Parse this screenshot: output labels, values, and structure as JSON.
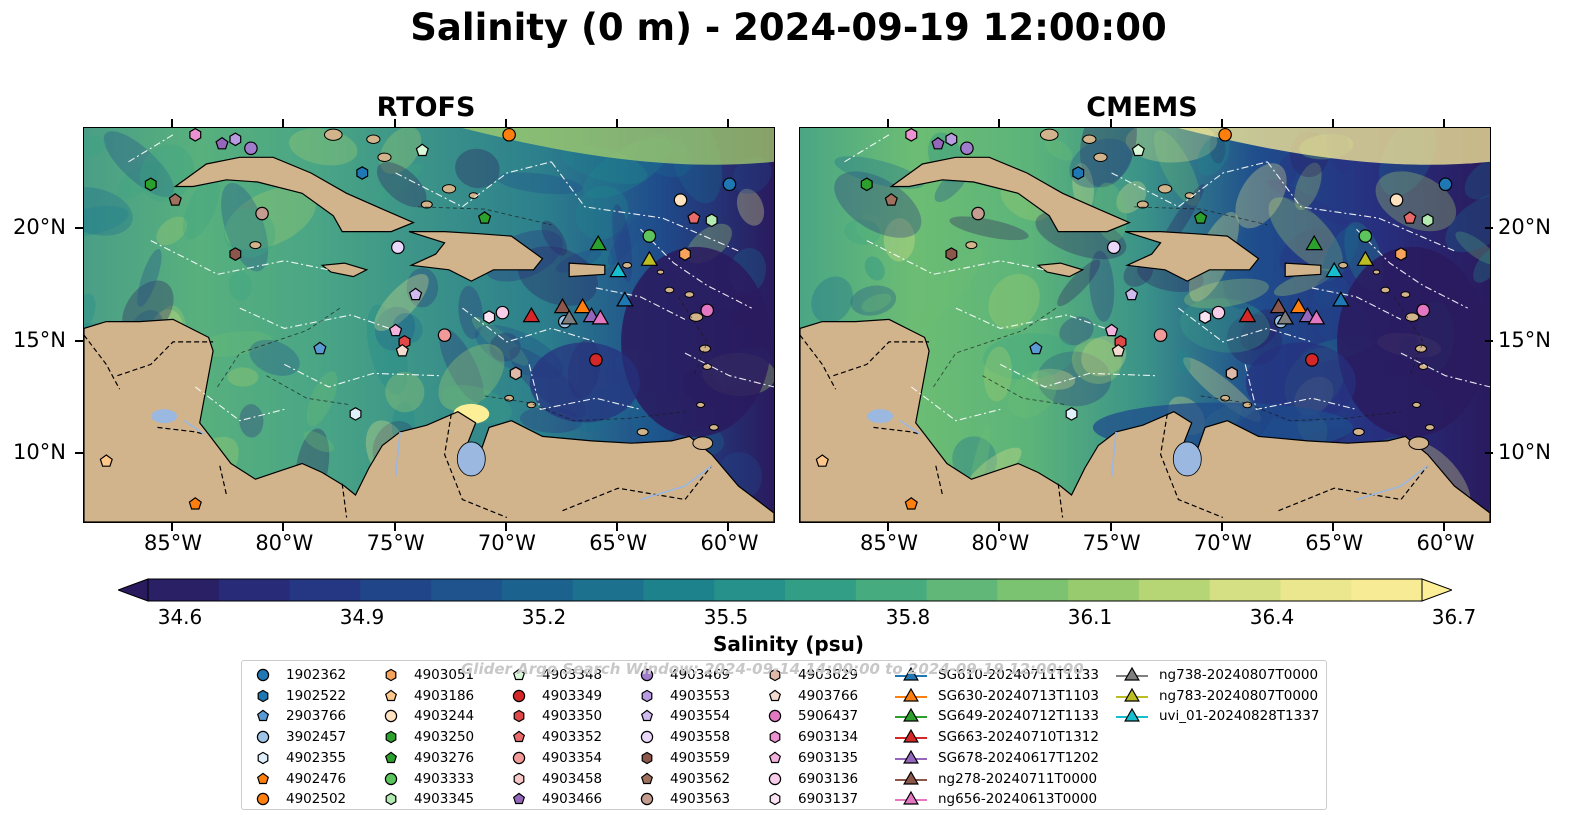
{
  "title": "Salinity (0 m) - 2024-09-19 12:00:00",
  "panels": [
    {
      "title": "RTOFS",
      "side": "left"
    },
    {
      "title": "CMEMS",
      "side": "right"
    }
  ],
  "map": {
    "lon_range": [
      -89.0,
      -58.0
    ],
    "lat_range": [
      7.0,
      24.5
    ],
    "x_ticks": [
      "85°W",
      "80°W",
      "75°W",
      "70°W",
      "65°W",
      "60°W"
    ],
    "y_ticks": [
      "20°N",
      "15°N",
      "10°N"
    ],
    "land_color": "#d2b48c",
    "lake_color": "#9ab8e0"
  },
  "colorbar": {
    "label": "Salinity (psu)",
    "min": 34.6,
    "max": 36.7,
    "ticks": [
      "34.6",
      "34.9",
      "35.2",
      "35.5",
      "35.8",
      "36.1",
      "36.4",
      "36.7"
    ],
    "colors": [
      "#2a1a5e",
      "#27307f",
      "#1f4c8c",
      "#19698f",
      "#1f8a8c",
      "#3aa584",
      "#6cbd73",
      "#a7d06c",
      "#e4e48a",
      "#fdee98"
    ]
  },
  "watermark": "Glider Argo Search Window: 2024-09-14 14:00:00 to 2024-09-19 12:00:00",
  "legend": [
    {
      "label": "1902362",
      "marker": "circle",
      "color": "#1f77b4"
    },
    {
      "label": "1902522",
      "marker": "hexagon",
      "color": "#1f77b4"
    },
    {
      "label": "2903766",
      "marker": "pentagon",
      "color": "#5b9bd5"
    },
    {
      "label": "3902457",
      "marker": "circle",
      "color": "#9ec5e8"
    },
    {
      "label": "4902355",
      "marker": "hexagon",
      "color": "#dff0fb"
    },
    {
      "label": "4902476",
      "marker": "pentagon",
      "color": "#ff7f0e"
    },
    {
      "label": "4902502",
      "marker": "circle",
      "color": "#ff7f0e"
    },
    {
      "label": "4903051",
      "marker": "hexagon",
      "color": "#f7a35c"
    },
    {
      "label": "4903186",
      "marker": "pentagon",
      "color": "#ffc88a"
    },
    {
      "label": "4903244",
      "marker": "circle",
      "color": "#ffe2c0"
    },
    {
      "label": "4903250",
      "marker": "hexagon",
      "color": "#2ca02c"
    },
    {
      "label": "4903276",
      "marker": "pentagon",
      "color": "#2ca02c"
    },
    {
      "label": "4903333",
      "marker": "circle",
      "color": "#5cc45c"
    },
    {
      "label": "4903345",
      "marker": "hexagon",
      "color": "#b2eab2"
    },
    {
      "label": "4903348",
      "marker": "pentagon",
      "color": "#d8f6d8"
    },
    {
      "label": "4903349",
      "marker": "circle",
      "color": "#d62728"
    },
    {
      "label": "4903350",
      "marker": "hexagon",
      "color": "#e04848"
    },
    {
      "label": "4903352",
      "marker": "pentagon",
      "color": "#e86a6a"
    },
    {
      "label": "4903354",
      "marker": "circle",
      "color": "#f29a9a"
    },
    {
      "label": "4903458",
      "marker": "hexagon",
      "color": "#f8c8c8"
    },
    {
      "label": "4903466",
      "marker": "pentagon",
      "color": "#9467bd"
    },
    {
      "label": "4903469",
      "marker": "circle",
      "color": "#a07ccc"
    },
    {
      "label": "4903553",
      "marker": "hexagon",
      "color": "#b89be0"
    },
    {
      "label": "4903554",
      "marker": "pentagon",
      "color": "#d0bbef"
    },
    {
      "label": "4903558",
      "marker": "circle",
      "color": "#ead8fb"
    },
    {
      "label": "4903559",
      "marker": "hexagon",
      "color": "#8c564b"
    },
    {
      "label": "4903562",
      "marker": "pentagon",
      "color": "#a0705f"
    },
    {
      "label": "4903563",
      "marker": "circle",
      "color": "#c49c90"
    },
    {
      "label": "4903629",
      "marker": "hexagon",
      "color": "#deb8a8"
    },
    {
      "label": "4903766",
      "marker": "pentagon",
      "color": "#f3dccf"
    },
    {
      "label": "5906437",
      "marker": "circle",
      "color": "#e377c2"
    },
    {
      "label": "6903134",
      "marker": "hexagon",
      "color": "#ec92d0"
    },
    {
      "label": "6903135",
      "marker": "pentagon",
      "color": "#f3b2de"
    },
    {
      "label": "6903136",
      "marker": "circle",
      "color": "#f8cdea"
    },
    {
      "label": "6903137",
      "marker": "hexagon",
      "color": "#fbe3f3"
    },
    {
      "label": "SG610-20240711T1133",
      "marker": "triangle-line",
      "color": "#1f77b4"
    },
    {
      "label": "SG630-20240713T1103",
      "marker": "triangle-line",
      "color": "#ff7f0e"
    },
    {
      "label": "SG649-20240712T1133",
      "marker": "triangle-line",
      "color": "#2ca02c"
    },
    {
      "label": "SG663-20240710T1312",
      "marker": "triangle-line",
      "color": "#d62728"
    },
    {
      "label": "SG678-20240617T1202",
      "marker": "triangle-line",
      "color": "#9467bd"
    },
    {
      "label": "ng278-20240711T0000",
      "marker": "triangle-line",
      "color": "#8c564b"
    },
    {
      "label": "ng656-20240613T0000",
      "marker": "triangle-line",
      "color": "#e377c2"
    },
    {
      "label": "ng738-20240807T0000",
      "marker": "triangle-line",
      "color": "#7f7f7f"
    },
    {
      "label": "ng783-20240807T0000",
      "marker": "triangle-line",
      "color": "#bcbd22"
    },
    {
      "label": "uvi_01-20240828T1337",
      "marker": "triangle-line",
      "color": "#17becf"
    }
  ],
  "observations": [
    {
      "id": "1902362",
      "lon": -60.0,
      "lat": 22.0
    },
    {
      "id": "1902522",
      "lon": -76.5,
      "lat": 22.5
    },
    {
      "id": "2903766",
      "lon": -78.4,
      "lat": 14.7
    },
    {
      "id": "3902457",
      "lon": -67.4,
      "lat": 15.9
    },
    {
      "id": "4902355",
      "lon": -76.8,
      "lat": 11.8
    },
    {
      "id": "4902476",
      "lon": -84.0,
      "lat": 7.8
    },
    {
      "id": "4902502",
      "lon": -69.9,
      "lat": 24.2
    },
    {
      "id": "4903051",
      "lon": -62.0,
      "lat": 18.9
    },
    {
      "id": "4903186",
      "lon": -88.0,
      "lat": 9.7
    },
    {
      "id": "4903244",
      "lon": -62.2,
      "lat": 21.3
    },
    {
      "id": "4903250",
      "lon": -86.0,
      "lat": 22.0
    },
    {
      "id": "4903276",
      "lon": -71.0,
      "lat": 20.5
    },
    {
      "id": "4903333",
      "lon": -63.6,
      "lat": 19.7
    },
    {
      "id": "4903345",
      "lon": -60.8,
      "lat": 20.4
    },
    {
      "id": "4903348",
      "lon": -73.8,
      "lat": 23.5
    },
    {
      "id": "4903349",
      "lon": -66.0,
      "lat": 14.2
    },
    {
      "id": "4903350",
      "lon": -74.6,
      "lat": 15.0
    },
    {
      "id": "4903352",
      "lon": -61.6,
      "lat": 20.5
    },
    {
      "id": "4903354",
      "lon": -72.8,
      "lat": 15.3
    },
    {
      "id": "4903458",
      "lon": -69.6,
      "lat": 13.6
    },
    {
      "id": "4903466",
      "lon": -82.8,
      "lat": 23.8
    },
    {
      "id": "4903469",
      "lon": -81.5,
      "lat": 23.6
    },
    {
      "id": "4903553",
      "lon": -82.2,
      "lat": 24.0
    },
    {
      "id": "4903554",
      "lon": -74.1,
      "lat": 17.1
    },
    {
      "id": "4903558",
      "lon": -74.9,
      "lat": 19.2
    },
    {
      "id": "4903559",
      "lon": -82.2,
      "lat": 18.9
    },
    {
      "id": "4903562",
      "lon": -84.9,
      "lat": 21.3
    },
    {
      "id": "4903563",
      "lon": -81.0,
      "lat": 20.7
    },
    {
      "id": "4903629",
      "lon": -69.6,
      "lat": 13.6
    },
    {
      "id": "4903766",
      "lon": -74.7,
      "lat": 14.6
    },
    {
      "id": "5906437",
      "lon": -61.0,
      "lat": 16.4
    },
    {
      "id": "6903134",
      "lon": -84.0,
      "lat": 24.2
    },
    {
      "id": "6903135",
      "lon": -75.0,
      "lat": 15.5
    },
    {
      "id": "6903136",
      "lon": -70.2,
      "lat": 16.3
    },
    {
      "id": "6903137",
      "lon": -70.8,
      "lat": 16.1
    }
  ],
  "gliders": [
    {
      "id": "SG610-20240711T1133",
      "lon": -64.7,
      "lat": 16.8
    },
    {
      "id": "SG630-20240713T1103",
      "lon": -66.6,
      "lat": 16.5
    },
    {
      "id": "SG649-20240712T1133",
      "lon": -65.9,
      "lat": 19.3
    },
    {
      "id": "SG663-20240710T1312",
      "lon": -68.9,
      "lat": 16.1
    },
    {
      "id": "SG678-20240617T1202",
      "lon": -66.2,
      "lat": 16.1
    },
    {
      "id": "ng278-20240711T0000",
      "lon": -67.5,
      "lat": 16.5
    },
    {
      "id": "ng656-20240613T0000",
      "lon": -65.8,
      "lat": 16.0
    },
    {
      "id": "ng738-20240807T0000",
      "lon": -67.2,
      "lat": 16.0
    },
    {
      "id": "ng783-20240807T0000",
      "lon": -63.6,
      "lat": 18.6
    },
    {
      "id": "uvi_01-20240828T1337",
      "lon": -65.0,
      "lat": 18.1
    }
  ]
}
